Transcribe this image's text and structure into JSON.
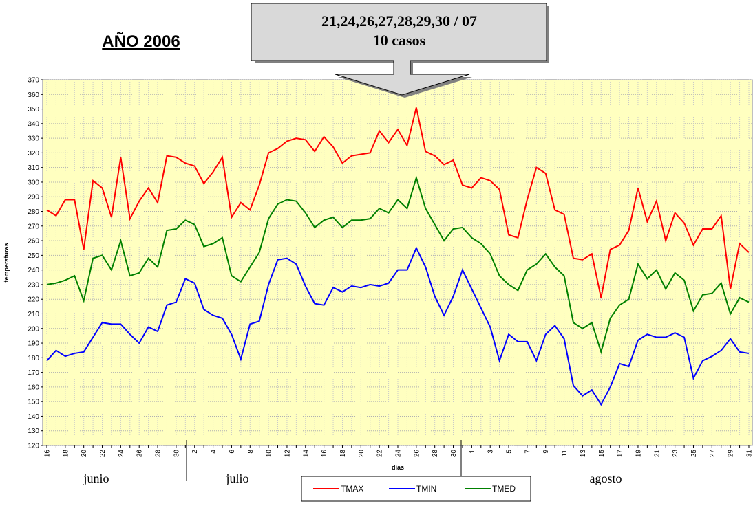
{
  "chart_data": {
    "type": "line",
    "title": "AÑO 2006",
    "annotation": [
      "21,24,26,27,28,29,30 / 07",
      "10 casos"
    ],
    "ylabel": "temperaturas",
    "xlabel": "días",
    "month_labels": [
      "junio",
      "julio",
      "agosto"
    ],
    "categories": [
      "16",
      null,
      "18",
      null,
      "20",
      null,
      "22",
      null,
      "24",
      null,
      "26",
      null,
      "28",
      null,
      "30",
      null,
      "2",
      null,
      "4",
      null,
      "6",
      null,
      "8",
      null,
      "10",
      null,
      "12",
      null,
      "14",
      null,
      "16",
      null,
      "18",
      null,
      "20",
      null,
      "22",
      null,
      "24",
      null,
      "26",
      null,
      "28",
      null,
      "30",
      null,
      "1",
      null,
      "3",
      null,
      "5",
      null,
      "7",
      null,
      "9",
      null,
      "11",
      null,
      "13",
      null,
      "15",
      null,
      "17",
      null,
      "19",
      null,
      "21",
      null,
      "23",
      null,
      "25",
      null,
      "27",
      null,
      "29",
      null,
      "31"
    ],
    "series": [
      {
        "name": "TMAX",
        "color": "#ff0000",
        "values": [
          281,
          277,
          288,
          288,
          254,
          301,
          296,
          276,
          317,
          275,
          287,
          296,
          286,
          318,
          317,
          313,
          311,
          299,
          307,
          317,
          276,
          286,
          281,
          298,
          320,
          323,
          328,
          330,
          329,
          321,
          331,
          324,
          313,
          318,
          319,
          320,
          335,
          327,
          336,
          325,
          351,
          321,
          318,
          312,
          315,
          298,
          296,
          303,
          301,
          295,
          264,
          262,
          288,
          310,
          306,
          281,
          278,
          248,
          247,
          251,
          221,
          254,
          257,
          267,
          296,
          273,
          287,
          260,
          279,
          272,
          257,
          268,
          268,
          277,
          227,
          258,
          252
        ]
      },
      {
        "name": "TMIN",
        "color": "#0000ff",
        "values": [
          178,
          185,
          181,
          183,
          184,
          194,
          204,
          203,
          203,
          196,
          190,
          201,
          198,
          216,
          218,
          234,
          231,
          213,
          209,
          207,
          196,
          179,
          203,
          205,
          230,
          247,
          248,
          244,
          229,
          217,
          216,
          228,
          225,
          229,
          228,
          230,
          229,
          231,
          240,
          240,
          255,
          242,
          222,
          209,
          222,
          240,
          227,
          214,
          201,
          178,
          196,
          191,
          191,
          178,
          196,
          202,
          193,
          161,
          154,
          158,
          148,
          160,
          176,
          174,
          192,
          196,
          194,
          194,
          197,
          194,
          166,
          178,
          181,
          185,
          193,
          184,
          183
        ]
      },
      {
        "name": "TMED",
        "color": "#008000",
        "values": [
          230,
          231,
          233,
          236,
          219,
          248,
          250,
          240,
          260,
          236,
          238,
          248,
          242,
          267,
          268,
          274,
          271,
          256,
          258,
          262,
          236,
          232,
          242,
          252,
          275,
          285,
          288,
          287,
          279,
          269,
          274,
          276,
          269,
          274,
          274,
          275,
          282,
          279,
          288,
          282,
          303,
          282,
          271,
          260,
          268,
          269,
          262,
          258,
          251,
          236,
          230,
          226,
          240,
          244,
          251,
          242,
          236,
          204,
          200,
          204,
          184,
          207,
          216,
          220,
          244,
          234,
          240,
          227,
          238,
          233,
          212,
          223,
          224,
          231,
          210,
          221,
          218
        ]
      }
    ],
    "ylim": [
      120,
      370
    ],
    "yticks": [
      120,
      130,
      140,
      150,
      160,
      170,
      180,
      190,
      200,
      210,
      220,
      230,
      240,
      250,
      260,
      270,
      280,
      290,
      300,
      310,
      320,
      330,
      340,
      350,
      360,
      370
    ],
    "grid": true
  }
}
